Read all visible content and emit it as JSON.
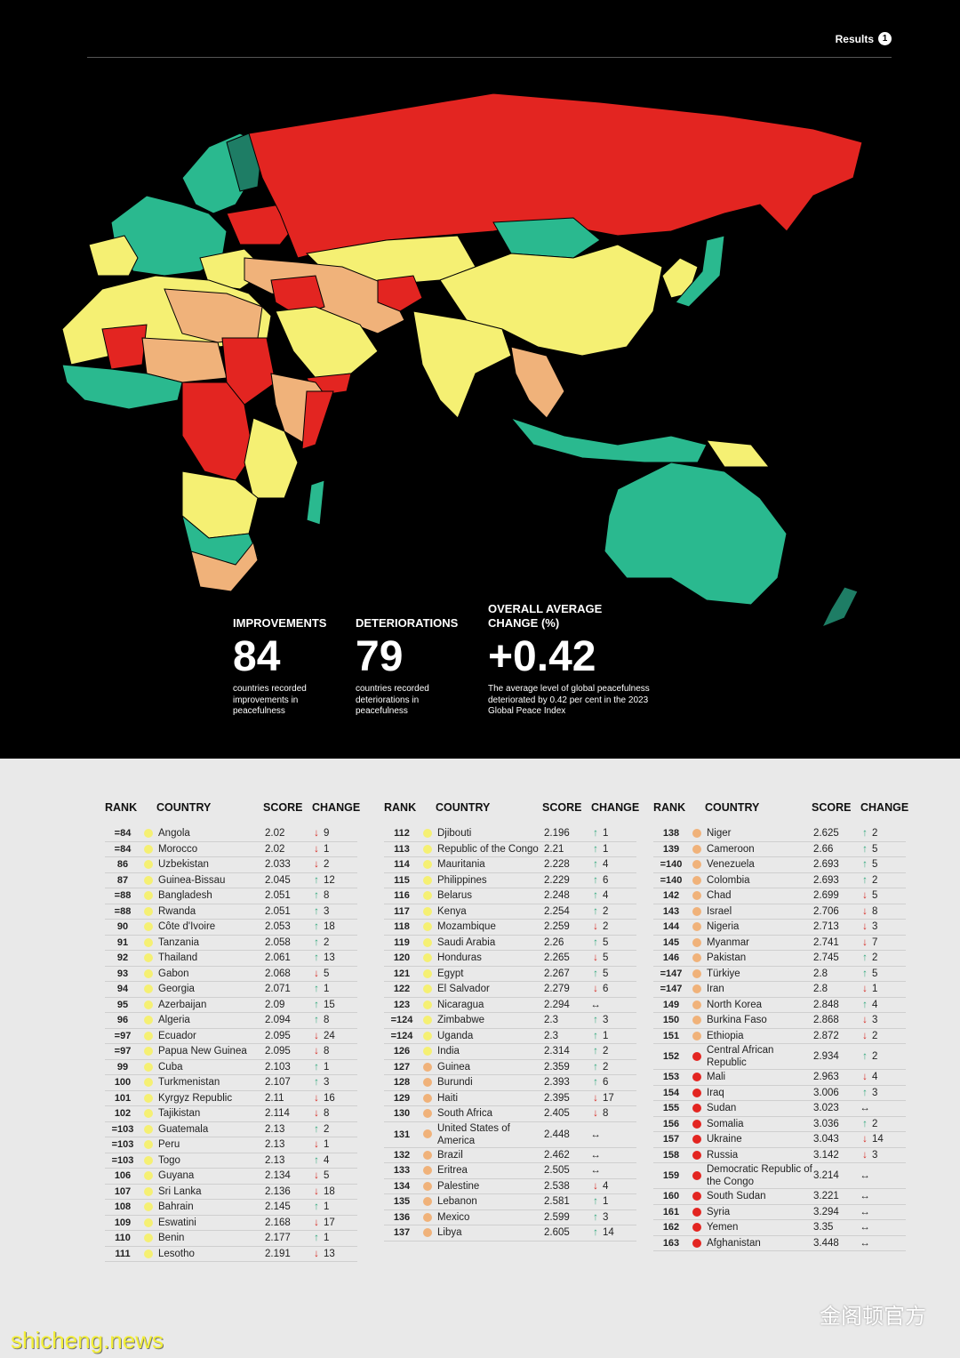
{
  "header": {
    "section_label": "Results",
    "section_number": "1"
  },
  "stats": [
    {
      "label": "IMPROVEMENTS",
      "value": "84",
      "description": "countries recorded improvements in peacefulness"
    },
    {
      "label": "DETERIORATIONS",
      "value": "79",
      "description": "countries recorded deteriorations in peacefulness"
    },
    {
      "label": "OVERALL AVERAGE CHANGE (%)",
      "value": "+0.42",
      "description": "The average level of global peacefulness deteriorated by 0.42 per cent in the 2023 Global Peace Index"
    }
  ],
  "table_headers": {
    "rank": "RANK",
    "country": "COUNTRY",
    "score": "SCORE",
    "change": "CHANGE"
  },
  "colors": {
    "very_high": "#2ab98f",
    "high": "#f5f073",
    "medium": "#f0b27a",
    "low": "#f08e6a",
    "very_low": "#e32521",
    "up": "#37aa7f",
    "down": "#d62c25"
  },
  "table_columns": [
    {
      "rows": [
        {
          "rank": "=84",
          "country": "Angola",
          "score": "2.02",
          "dir": "down",
          "change": "9",
          "color": "high"
        },
        {
          "rank": "=84",
          "country": "Morocco",
          "score": "2.02",
          "dir": "down",
          "change": "1",
          "color": "high"
        },
        {
          "rank": "86",
          "country": "Uzbekistan",
          "score": "2.033",
          "dir": "down",
          "change": "2",
          "color": "high"
        },
        {
          "rank": "87",
          "country": "Guinea-Bissau",
          "score": "2.045",
          "dir": "up",
          "change": "12",
          "color": "high"
        },
        {
          "rank": "=88",
          "country": "Bangladesh",
          "score": "2.051",
          "dir": "up",
          "change": "8",
          "color": "high"
        },
        {
          "rank": "=88",
          "country": "Rwanda",
          "score": "2.051",
          "dir": "up",
          "change": "3",
          "color": "high"
        },
        {
          "rank": "90",
          "country": "Côte d'Ivoire",
          "score": "2.053",
          "dir": "up",
          "change": "18",
          "color": "high"
        },
        {
          "rank": "91",
          "country": "Tanzania",
          "score": "2.058",
          "dir": "up",
          "change": "2",
          "color": "high"
        },
        {
          "rank": "92",
          "country": "Thailand",
          "score": "2.061",
          "dir": "up",
          "change": "13",
          "color": "high"
        },
        {
          "rank": "93",
          "country": "Gabon",
          "score": "2.068",
          "dir": "down",
          "change": "5",
          "color": "high"
        },
        {
          "rank": "94",
          "country": "Georgia",
          "score": "2.071",
          "dir": "up",
          "change": "1",
          "color": "high"
        },
        {
          "rank": "95",
          "country": "Azerbaijan",
          "score": "2.09",
          "dir": "up",
          "change": "15",
          "color": "high"
        },
        {
          "rank": "96",
          "country": "Algeria",
          "score": "2.094",
          "dir": "up",
          "change": "8",
          "color": "high"
        },
        {
          "rank": "=97",
          "country": "Ecuador",
          "score": "2.095",
          "dir": "down",
          "change": "24",
          "color": "high"
        },
        {
          "rank": "=97",
          "country": "Papua New Guinea",
          "score": "2.095",
          "dir": "down",
          "change": "8",
          "color": "high"
        },
        {
          "rank": "99",
          "country": "Cuba",
          "score": "2.103",
          "dir": "up",
          "change": "1",
          "color": "high"
        },
        {
          "rank": "100",
          "country": "Turkmenistan",
          "score": "2.107",
          "dir": "up",
          "change": "3",
          "color": "high"
        },
        {
          "rank": "101",
          "country": "Kyrgyz Republic",
          "score": "2.11",
          "dir": "down",
          "change": "16",
          "color": "high"
        },
        {
          "rank": "102",
          "country": "Tajikistan",
          "score": "2.114",
          "dir": "down",
          "change": "8",
          "color": "high"
        },
        {
          "rank": "=103",
          "country": "Guatemala",
          "score": "2.13",
          "dir": "up",
          "change": "2",
          "color": "high"
        },
        {
          "rank": "=103",
          "country": "Peru",
          "score": "2.13",
          "dir": "down",
          "change": "1",
          "color": "high"
        },
        {
          "rank": "=103",
          "country": "Togo",
          "score": "2.13",
          "dir": "up",
          "change": "4",
          "color": "high"
        },
        {
          "rank": "106",
          "country": "Guyana",
          "score": "2.134",
          "dir": "down",
          "change": "5",
          "color": "high"
        },
        {
          "rank": "107",
          "country": "Sri Lanka",
          "score": "2.136",
          "dir": "down",
          "change": "18",
          "color": "high"
        },
        {
          "rank": "108",
          "country": "Bahrain",
          "score": "2.145",
          "dir": "up",
          "change": "1",
          "color": "high"
        },
        {
          "rank": "109",
          "country": "Eswatini",
          "score": "2.168",
          "dir": "down",
          "change": "17",
          "color": "high"
        },
        {
          "rank": "110",
          "country": "Benin",
          "score": "2.177",
          "dir": "up",
          "change": "1",
          "color": "high"
        },
        {
          "rank": "111",
          "country": "Lesotho",
          "score": "2.191",
          "dir": "down",
          "change": "13",
          "color": "high"
        }
      ]
    },
    {
      "rows": [
        {
          "rank": "112",
          "country": "Djibouti",
          "score": "2.196",
          "dir": "up",
          "change": "1",
          "color": "high"
        },
        {
          "rank": "113",
          "country": "Republic of the Congo",
          "score": "2.21",
          "dir": "up",
          "change": "1",
          "color": "high"
        },
        {
          "rank": "114",
          "country": "Mauritania",
          "score": "2.228",
          "dir": "up",
          "change": "4",
          "color": "high"
        },
        {
          "rank": "115",
          "country": "Philippines",
          "score": "2.229",
          "dir": "up",
          "change": "6",
          "color": "high"
        },
        {
          "rank": "116",
          "country": "Belarus",
          "score": "2.248",
          "dir": "up",
          "change": "4",
          "color": "high"
        },
        {
          "rank": "117",
          "country": "Kenya",
          "score": "2.254",
          "dir": "up",
          "change": "2",
          "color": "high"
        },
        {
          "rank": "118",
          "country": "Mozambique",
          "score": "2.259",
          "dir": "down",
          "change": "2",
          "color": "high"
        },
        {
          "rank": "119",
          "country": "Saudi Arabia",
          "score": "2.26",
          "dir": "up",
          "change": "5",
          "color": "high"
        },
        {
          "rank": "120",
          "country": "Honduras",
          "score": "2.265",
          "dir": "down",
          "change": "5",
          "color": "high"
        },
        {
          "rank": "121",
          "country": "Egypt",
          "score": "2.267",
          "dir": "up",
          "change": "5",
          "color": "high"
        },
        {
          "rank": "122",
          "country": "El Salvador",
          "score": "2.279",
          "dir": "down",
          "change": "6",
          "color": "high"
        },
        {
          "rank": "123",
          "country": "Nicaragua",
          "score": "2.294",
          "dir": "same",
          "change": "",
          "color": "high"
        },
        {
          "rank": "=124",
          "country": "Zimbabwe",
          "score": "2.3",
          "dir": "up",
          "change": "3",
          "color": "high"
        },
        {
          "rank": "=124",
          "country": "Uganda",
          "score": "2.3",
          "dir": "up",
          "change": "1",
          "color": "high"
        },
        {
          "rank": "126",
          "country": "India",
          "score": "2.314",
          "dir": "up",
          "change": "2",
          "color": "high"
        },
        {
          "rank": "127",
          "country": "Guinea",
          "score": "2.359",
          "dir": "up",
          "change": "2",
          "color": "medium"
        },
        {
          "rank": "128",
          "country": "Burundi",
          "score": "2.393",
          "dir": "up",
          "change": "6",
          "color": "medium"
        },
        {
          "rank": "129",
          "country": "Haiti",
          "score": "2.395",
          "dir": "down",
          "change": "17",
          "color": "medium"
        },
        {
          "rank": "130",
          "country": "South Africa",
          "score": "2.405",
          "dir": "down",
          "change": "8",
          "color": "medium"
        },
        {
          "rank": "131",
          "country": "United States of America",
          "score": "2.448",
          "dir": "same",
          "change": "",
          "color": "medium"
        },
        {
          "rank": "132",
          "country": "Brazil",
          "score": "2.462",
          "dir": "same",
          "change": "",
          "color": "medium"
        },
        {
          "rank": "133",
          "country": "Eritrea",
          "score": "2.505",
          "dir": "same",
          "change": "",
          "color": "medium"
        },
        {
          "rank": "134",
          "country": "Palestine",
          "score": "2.538",
          "dir": "down",
          "change": "4",
          "color": "medium"
        },
        {
          "rank": "135",
          "country": "Lebanon",
          "score": "2.581",
          "dir": "up",
          "change": "1",
          "color": "medium"
        },
        {
          "rank": "136",
          "country": "Mexico",
          "score": "2.599",
          "dir": "up",
          "change": "3",
          "color": "medium"
        },
        {
          "rank": "137",
          "country": "Libya",
          "score": "2.605",
          "dir": "up",
          "change": "14",
          "color": "medium"
        }
      ]
    },
    {
      "rows": [
        {
          "rank": "138",
          "country": "Niger",
          "score": "2.625",
          "dir": "up",
          "change": "2",
          "color": "medium"
        },
        {
          "rank": "139",
          "country": "Cameroon",
          "score": "2.66",
          "dir": "up",
          "change": "5",
          "color": "medium"
        },
        {
          "rank": "=140",
          "country": "Venezuela",
          "score": "2.693",
          "dir": "up",
          "change": "5",
          "color": "medium"
        },
        {
          "rank": "=140",
          "country": "Colombia",
          "score": "2.693",
          "dir": "up",
          "change": "2",
          "color": "medium"
        },
        {
          "rank": "142",
          "country": "Chad",
          "score": "2.699",
          "dir": "down",
          "change": "5",
          "color": "medium"
        },
        {
          "rank": "143",
          "country": "Israel",
          "score": "2.706",
          "dir": "down",
          "change": "8",
          "color": "medium"
        },
        {
          "rank": "144",
          "country": "Nigeria",
          "score": "2.713",
          "dir": "down",
          "change": "3",
          "color": "medium"
        },
        {
          "rank": "145",
          "country": "Myanmar",
          "score": "2.741",
          "dir": "down",
          "change": "7",
          "color": "medium"
        },
        {
          "rank": "146",
          "country": "Pakistan",
          "score": "2.745",
          "dir": "up",
          "change": "2",
          "color": "medium"
        },
        {
          "rank": "=147",
          "country": "Türkiye",
          "score": "2.8",
          "dir": "up",
          "change": "5",
          "color": "medium"
        },
        {
          "rank": "=147",
          "country": "Iran",
          "score": "2.8",
          "dir": "down",
          "change": "1",
          "color": "medium"
        },
        {
          "rank": "149",
          "country": "North Korea",
          "score": "2.848",
          "dir": "up",
          "change": "4",
          "color": "medium"
        },
        {
          "rank": "150",
          "country": "Burkina Faso",
          "score": "2.868",
          "dir": "down",
          "change": "3",
          "color": "medium"
        },
        {
          "rank": "151",
          "country": "Ethiopia",
          "score": "2.872",
          "dir": "down",
          "change": "2",
          "color": "medium"
        },
        {
          "rank": "152",
          "country": "Central African Republic",
          "score": "2.934",
          "dir": "up",
          "change": "2",
          "color": "very_low"
        },
        {
          "rank": "153",
          "country": "Mali",
          "score": "2.963",
          "dir": "down",
          "change": "4",
          "color": "very_low"
        },
        {
          "rank": "154",
          "country": "Iraq",
          "score": "3.006",
          "dir": "up",
          "change": "3",
          "color": "very_low"
        },
        {
          "rank": "155",
          "country": "Sudan",
          "score": "3.023",
          "dir": "same",
          "change": "",
          "color": "very_low"
        },
        {
          "rank": "156",
          "country": "Somalia",
          "score": "3.036",
          "dir": "up",
          "change": "2",
          "color": "very_low"
        },
        {
          "rank": "157",
          "country": "Ukraine",
          "score": "3.043",
          "dir": "down",
          "change": "14",
          "color": "very_low"
        },
        {
          "rank": "158",
          "country": "Russia",
          "score": "3.142",
          "dir": "down",
          "change": "3",
          "color": "very_low"
        },
        {
          "rank": "159",
          "country": "Democratic Republic of the Congo",
          "score": "3.214",
          "dir": "same",
          "change": "",
          "color": "very_low"
        },
        {
          "rank": "160",
          "country": "South Sudan",
          "score": "3.221",
          "dir": "same",
          "change": "",
          "color": "very_low"
        },
        {
          "rank": "161",
          "country": "Syria",
          "score": "3.294",
          "dir": "same",
          "change": "",
          "color": "very_low"
        },
        {
          "rank": "162",
          "country": "Yemen",
          "score": "3.35",
          "dir": "same",
          "change": "",
          "color": "very_low"
        },
        {
          "rank": "163",
          "country": "Afghanistan",
          "score": "3.448",
          "dir": "same",
          "change": "",
          "color": "very_low"
        }
      ]
    }
  ],
  "watermarks": {
    "wechat": "金阁顿官方",
    "site": "shicheng.news"
  }
}
